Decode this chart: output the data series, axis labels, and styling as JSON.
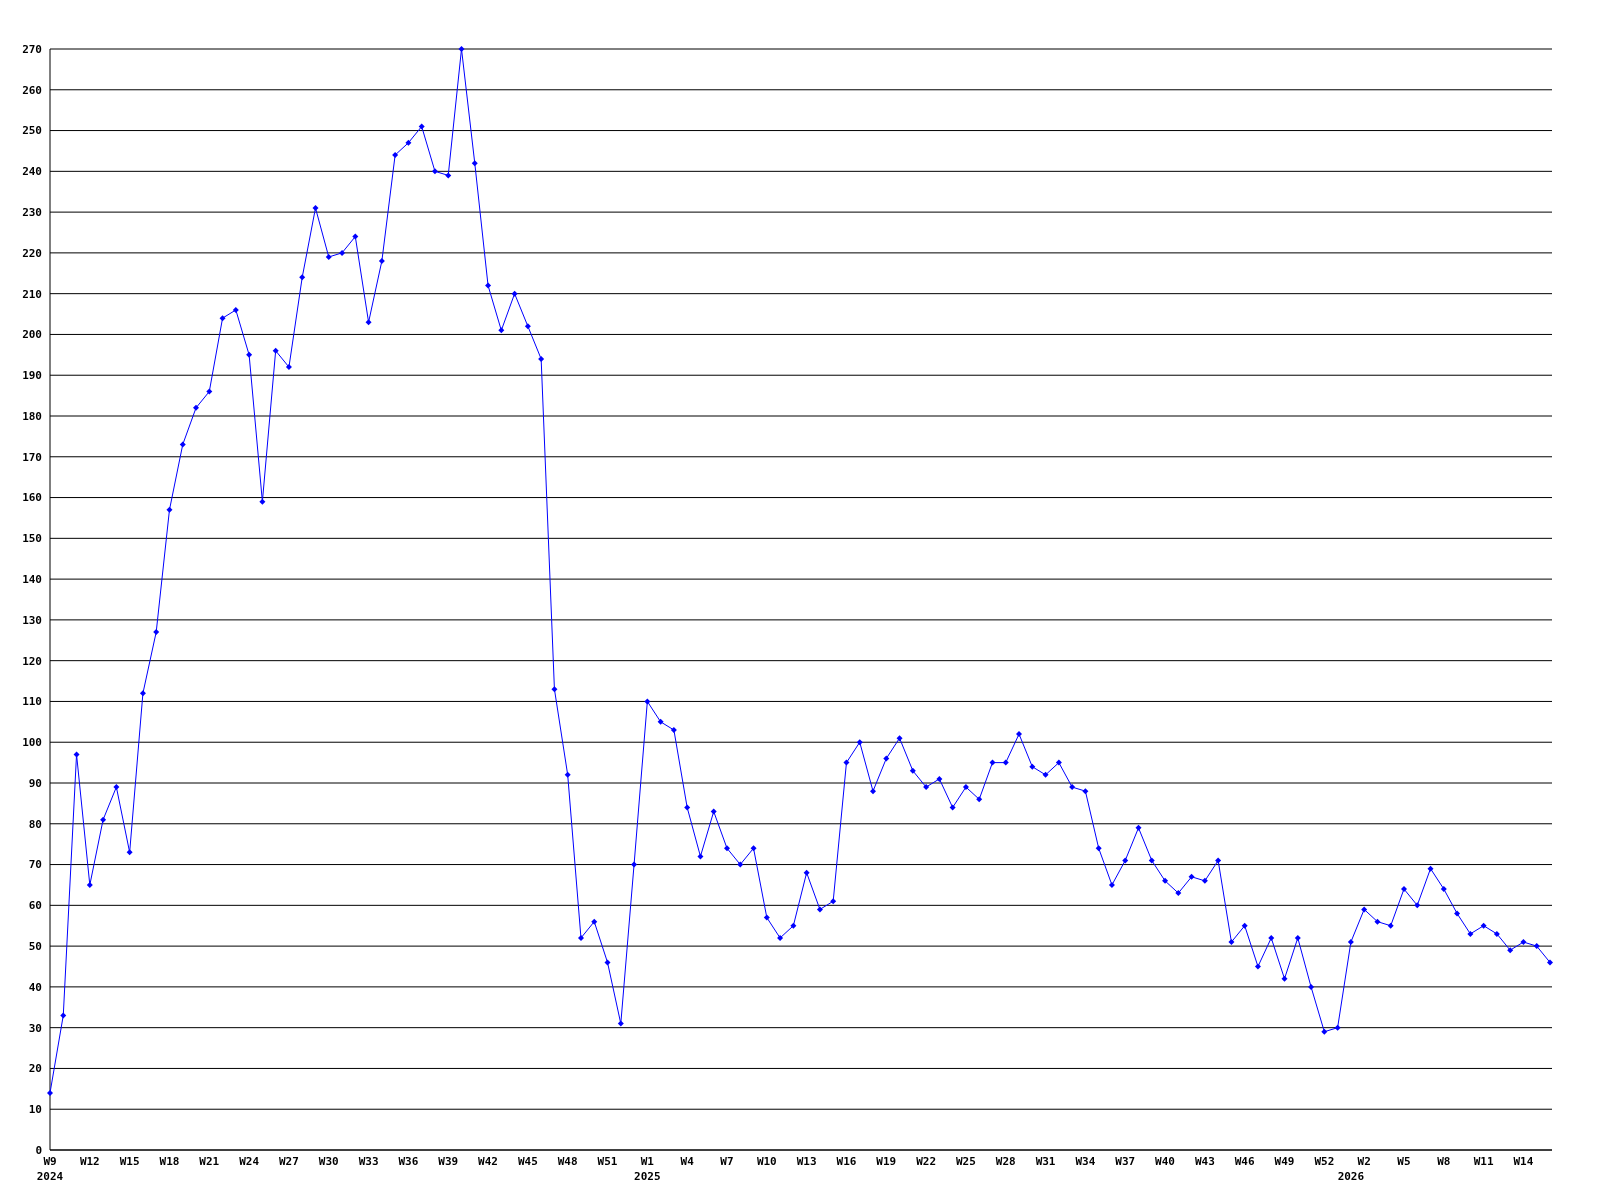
{
  "chart_data": {
    "type": "line",
    "categories": [
      "W9\n2024",
      null,
      null,
      "W12",
      null,
      null,
      "W15",
      null,
      null,
      "W18",
      null,
      null,
      "W21",
      null,
      null,
      "W24",
      null,
      null,
      "W27",
      null,
      null,
      "W30",
      null,
      null,
      "W33",
      null,
      null,
      "W36",
      null,
      null,
      "W39",
      null,
      null,
      "W42",
      null,
      null,
      "W45",
      null,
      null,
      "W48",
      null,
      null,
      "W51",
      null,
      null,
      "W1\n2025",
      null,
      null,
      "W4",
      null,
      null,
      "W7",
      null,
      null,
      "W10",
      null,
      null,
      "W13",
      null,
      null,
      "W16",
      null,
      null,
      "W19",
      null,
      null,
      "W22",
      null,
      null,
      "W25",
      null,
      null,
      "W28",
      null,
      null,
      "W31",
      null,
      null,
      "W34",
      null,
      null,
      "W37",
      null,
      null,
      "W40",
      null,
      null,
      "W43",
      null,
      null,
      "W46",
      null,
      null,
      "W49",
      null,
      null,
      "W52",
      null,
      "\n2026",
      "W2",
      null,
      null,
      "W5",
      null,
      null,
      "W8",
      null,
      null,
      "W11",
      null,
      null,
      "W14",
      null,
      null
    ],
    "series": [
      {
        "color": "#0000ff",
        "values": [
          14,
          33,
          97,
          65,
          81,
          89,
          73,
          112,
          127,
          157,
          173,
          182,
          186,
          204,
          206,
          195,
          159,
          196,
          192,
          214,
          231,
          219,
          220,
          224,
          203,
          218,
          244,
          247,
          251,
          240,
          239,
          270,
          242,
          212,
          201,
          210,
          202,
          194,
          113,
          92,
          52,
          56,
          46,
          31,
          70,
          110,
          105,
          103,
          84,
          72,
          83,
          74,
          70,
          74,
          57,
          52,
          55,
          68,
          59,
          61,
          95,
          100,
          88,
          96,
          101,
          93,
          89,
          91,
          84,
          89,
          86,
          95,
          95,
          102,
          94,
          92,
          95,
          89,
          88,
          74,
          65,
          71,
          79,
          71,
          66,
          63,
          67,
          66,
          71,
          51,
          55,
          45,
          52,
          42,
          52,
          40,
          29,
          30,
          51,
          59,
          56,
          55,
          64,
          60,
          69,
          64,
          58,
          53,
          55,
          53,
          49,
          51,
          50,
          46
        ]
      }
    ],
    "ylim": [
      0,
      270
    ],
    "yticks": [
      0,
      10,
      20,
      30,
      40,
      50,
      60,
      70,
      80,
      90,
      100,
      110,
      120,
      130,
      140,
      150,
      160,
      170,
      180,
      190,
      200,
      210,
      220,
      230,
      240,
      250,
      260,
      270
    ],
    "grid": "y",
    "marker": "diamond",
    "line_style": "solid"
  }
}
